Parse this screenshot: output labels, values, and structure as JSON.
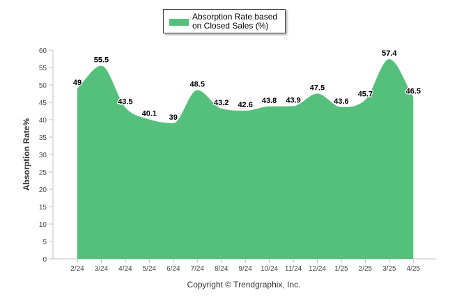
{
  "chart_data": {
    "type": "area",
    "categories": [
      "2/24",
      "3/24",
      "4/24",
      "5/24",
      "6/24",
      "7/24",
      "8/24",
      "9/24",
      "10/24",
      "11/24",
      "12/24",
      "1/25",
      "2/25",
      "3/25",
      "4/25"
    ],
    "series": [
      {
        "name": "Absorption Rate based on Closed Sales (%)",
        "values": [
          49,
          55.5,
          43.5,
          40.1,
          39,
          48.5,
          43.2,
          42.6,
          43.8,
          43.9,
          47.5,
          43.6,
          45.7,
          57.4,
          46.5
        ]
      }
    ],
    "ylabel": "Absorption Rate%",
    "xlabel": "",
    "ylim": [
      0,
      60
    ],
    "yticks": [
      0,
      5,
      10,
      15,
      20,
      25,
      30,
      35,
      40,
      45,
      50,
      55,
      60
    ],
    "grid": false,
    "legend_position": "top-center",
    "data_labels": true,
    "color": "#55c07c"
  },
  "footer": {
    "copyright": "Copyright © Trendgraphix, Inc."
  }
}
